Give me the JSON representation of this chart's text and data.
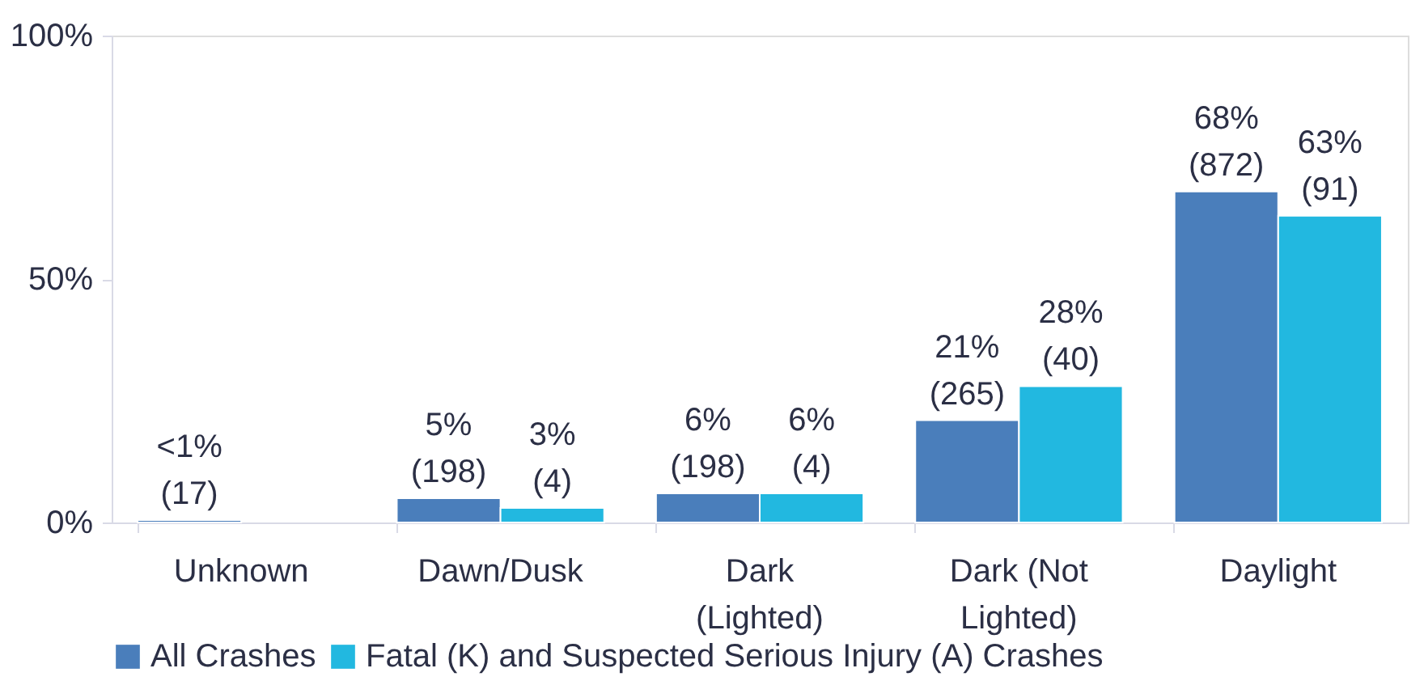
{
  "chart_data": {
    "type": "bar",
    "categories": [
      "Unknown",
      "Dawn/Dusk",
      "Dark (Lighted)",
      "Dark (Not Lighted)",
      "Daylight"
    ],
    "series": [
      {
        "name": "All Crashes",
        "color": "#4a7ebb",
        "values": [
          0.5,
          5,
          6,
          21,
          68
        ],
        "value_labels": [
          "<1%\n(17)",
          "5%\n(198)",
          "6%\n(198)",
          "21%\n(265)",
          "68%\n(872)"
        ]
      },
      {
        "name": "Fatal (K) and Suspected Serious Injury (A) Crashes",
        "color": "#22b8e0",
        "values": [
          null,
          3,
          6,
          28,
          63
        ],
        "value_labels": [
          null,
          "3%\n(4)",
          "6%\n(4)",
          "28%\n(40)",
          "63%\n(91)"
        ]
      }
    ],
    "ylim": [
      0,
      100
    ],
    "yticks": [
      {
        "value": 0,
        "label": "0%"
      },
      {
        "value": 50,
        "label": "50%"
      },
      {
        "value": 100,
        "label": "100%"
      }
    ],
    "grid": false,
    "legend": "bottom"
  }
}
